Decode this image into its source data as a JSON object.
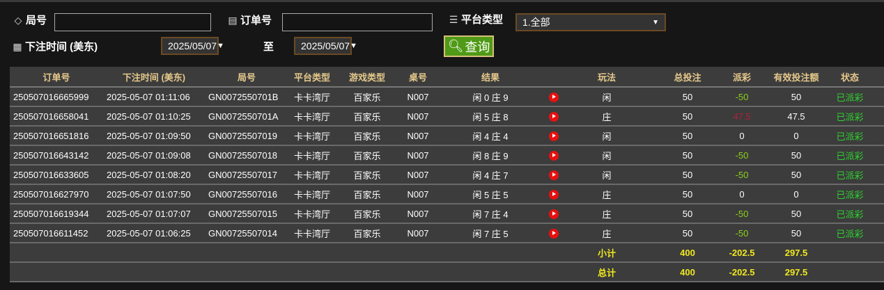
{
  "filters": {
    "round_label": "局号",
    "round_value": "",
    "order_label": "订单号",
    "order_value": "",
    "platform_label": "平台类型",
    "platform_value": "1.全部",
    "time_label": "下注时间 (美东)",
    "date_from": "2025/05/07",
    "date_to": "2025/05/07",
    "to_label": "至",
    "query_label": "查询"
  },
  "table": {
    "headers": [
      "订单号",
      "下注时间 (美东)",
      "局号",
      "平台类型",
      "游戏类型",
      "桌号",
      "结果",
      "",
      "玩法",
      "总投注",
      "派彩",
      "有效投注额",
      "状态"
    ],
    "rows": [
      {
        "order": "250507016665999",
        "time": "2025-05-07 01:11:06",
        "round": "GN0072550701B",
        "platform": "卡卡湾厅",
        "game": "百家乐",
        "table": "N007",
        "result": "闲 0 庄 9",
        "play": "闲",
        "bet": "50",
        "payout": "-50",
        "valid": "50",
        "status": "已派彩"
      },
      {
        "order": "250507016658041",
        "time": "2025-05-07 01:10:25",
        "round": "GN0072550701A",
        "platform": "卡卡湾厅",
        "game": "百家乐",
        "table": "N007",
        "result": "闲 5 庄 8",
        "play": "庄",
        "bet": "50",
        "payout": "47.5",
        "valid": "47.5",
        "status": "已派彩"
      },
      {
        "order": "250507016651816",
        "time": "2025-05-07 01:09:50",
        "round": "GN00725507019",
        "platform": "卡卡湾厅",
        "game": "百家乐",
        "table": "N007",
        "result": "闲 4 庄 4",
        "play": "闲",
        "bet": "50",
        "payout": "0",
        "valid": "0",
        "status": "已派彩"
      },
      {
        "order": "250507016643142",
        "time": "2025-05-07 01:09:08",
        "round": "GN00725507018",
        "platform": "卡卡湾厅",
        "game": "百家乐",
        "table": "N007",
        "result": "闲 8 庄 9",
        "play": "闲",
        "bet": "50",
        "payout": "-50",
        "valid": "50",
        "status": "已派彩"
      },
      {
        "order": "250507016633605",
        "time": "2025-05-07 01:08:20",
        "round": "GN00725507017",
        "platform": "卡卡湾厅",
        "game": "百家乐",
        "table": "N007",
        "result": "闲 4 庄 7",
        "play": "闲",
        "bet": "50",
        "payout": "-50",
        "valid": "50",
        "status": "已派彩"
      },
      {
        "order": "250507016627970",
        "time": "2025-05-07 01:07:50",
        "round": "GN00725507016",
        "platform": "卡卡湾厅",
        "game": "百家乐",
        "table": "N007",
        "result": "闲 5 庄 5",
        "play": "庄",
        "bet": "50",
        "payout": "0",
        "valid": "0",
        "status": "已派彩"
      },
      {
        "order": "250507016619344",
        "time": "2025-05-07 01:07:07",
        "round": "GN00725507015",
        "platform": "卡卡湾厅",
        "game": "百家乐",
        "table": "N007",
        "result": "闲 7 庄 4",
        "play": "庄",
        "bet": "50",
        "payout": "-50",
        "valid": "50",
        "status": "已派彩"
      },
      {
        "order": "250507016611452",
        "time": "2025-05-07 01:06:25",
        "round": "GN00725507014",
        "platform": "卡卡湾厅",
        "game": "百家乐",
        "table": "N007",
        "result": "闲 7 庄 5",
        "play": "庄",
        "bet": "50",
        "payout": "-50",
        "valid": "50",
        "status": "已派彩"
      }
    ],
    "subtotal": {
      "label": "小计",
      "bet": "400",
      "payout": "-202.5",
      "valid": "297.5"
    },
    "total": {
      "label": "总计",
      "bet": "400",
      "payout": "-202.5",
      "valid": "297.5"
    }
  },
  "colors": {
    "header_text": "#e6c98b",
    "loss": "#8bd11a",
    "win": "#b0223a",
    "status": "#2fd12f",
    "sum": "#f0e81e",
    "query_button": "#4f9a16"
  }
}
